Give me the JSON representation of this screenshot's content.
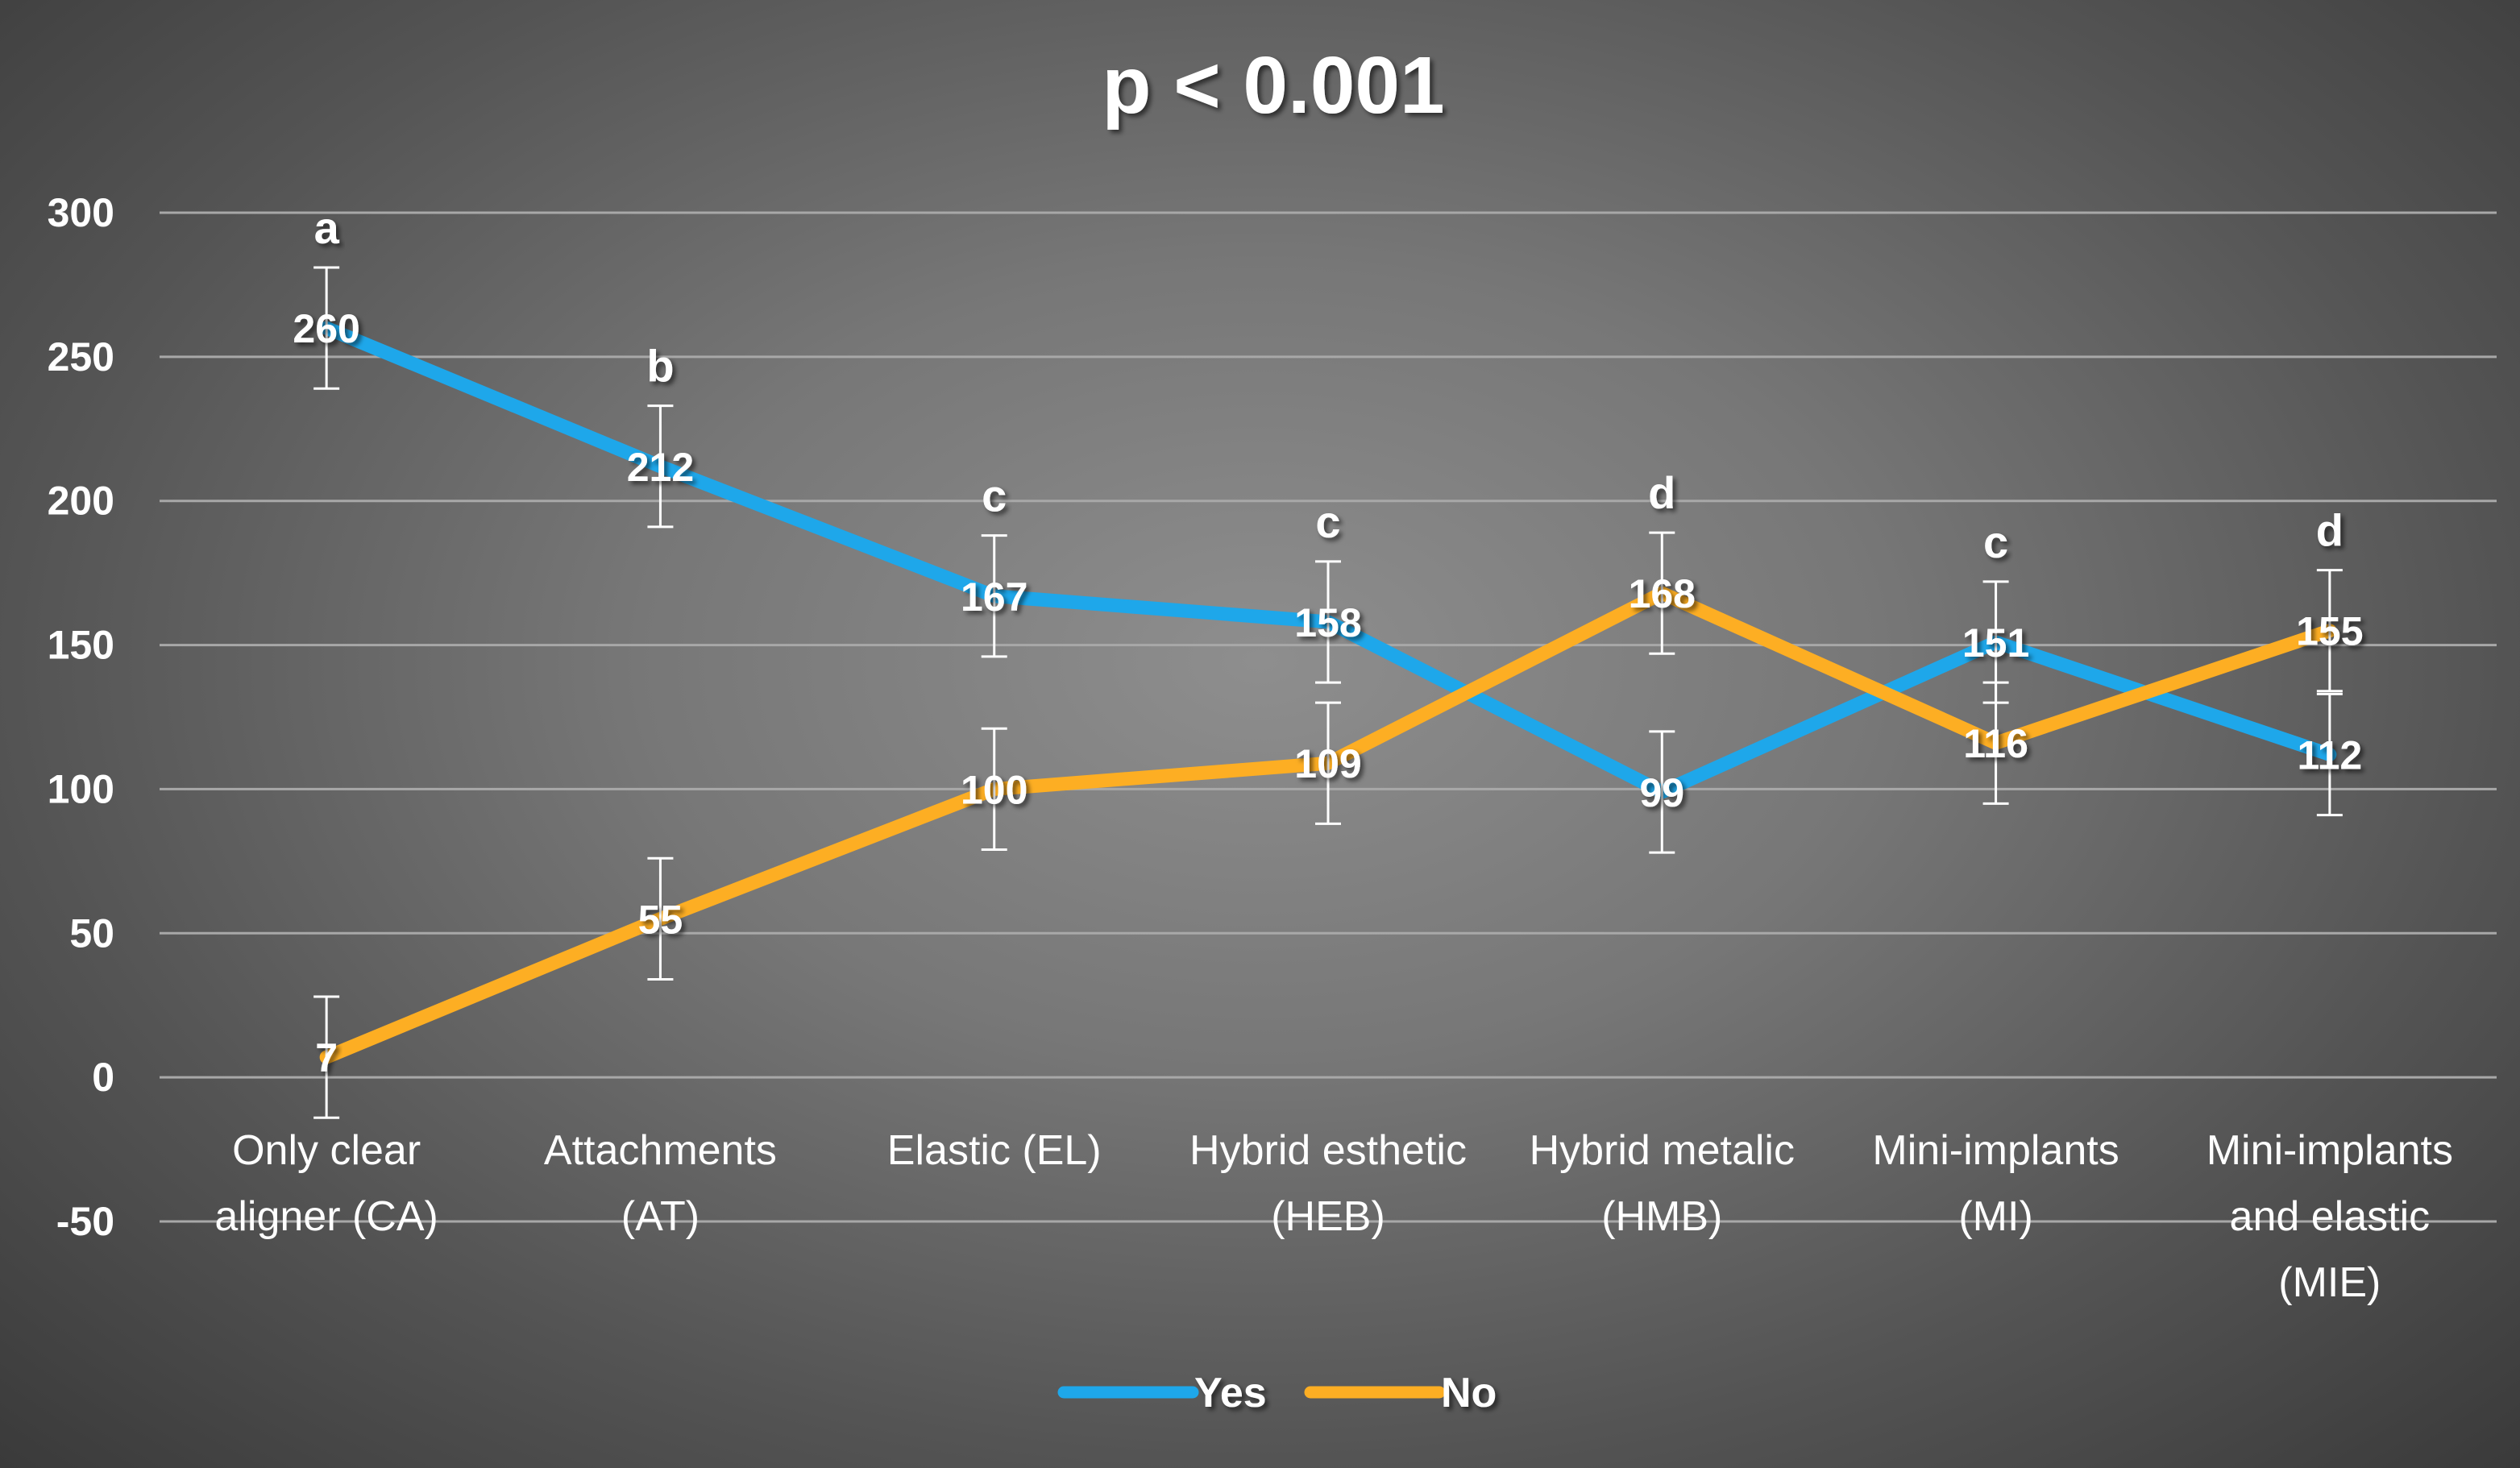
{
  "chart_data": {
    "type": "line",
    "title": "p < 0.001",
    "xlabel": "",
    "ylabel": "",
    "ylim": [
      -50,
      300
    ],
    "yticks": [
      -50,
      0,
      50,
      100,
      150,
      200,
      250,
      300
    ],
    "grid": true,
    "legend_position": "bottom",
    "categories": [
      [
        "Only clear",
        "aligner (CA)"
      ],
      [
        "Attachments",
        "(AT)"
      ],
      [
        "Elastic (EL)"
      ],
      [
        "Hybrid esthetic",
        "(HEB)"
      ],
      [
        "Hybrid metalic",
        "(HMB)"
      ],
      [
        "Mini-implants",
        "(MI)"
      ],
      [
        "Mini-implants",
        "and elastic",
        "(MIE)"
      ]
    ],
    "significance_letters": [
      "a",
      "b",
      "c",
      "c",
      "d",
      "c",
      "d"
    ],
    "error_bar": 21,
    "series": [
      {
        "name": "Yes",
        "color": "#1ea7ea",
        "values": [
          260,
          212,
          167,
          158,
          99,
          151,
          112
        ]
      },
      {
        "name": "No",
        "color": "#fdae23",
        "values": [
          7,
          55,
          100,
          109,
          168,
          116,
          155
        ]
      }
    ]
  }
}
